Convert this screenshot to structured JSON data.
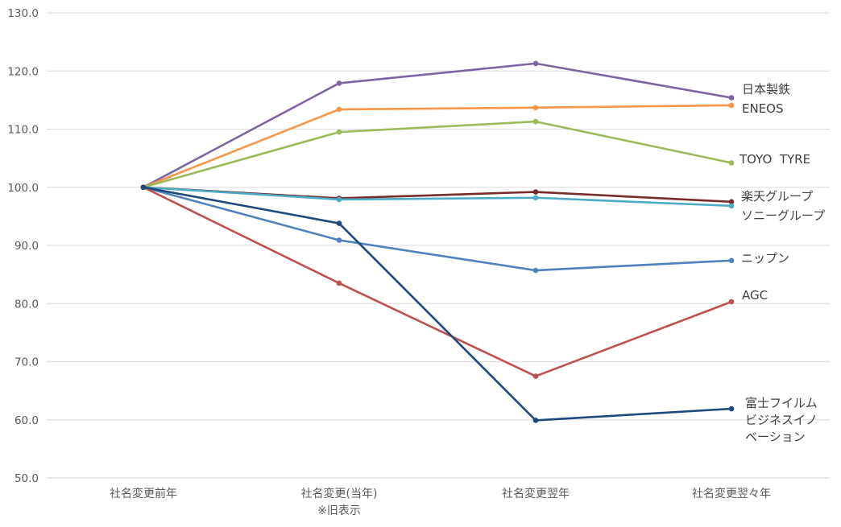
{
  "chart_data": {
    "type": "line",
    "title": "",
    "xlabel": "",
    "ylabel": "",
    "ylim": [
      50,
      130
    ],
    "grid": true,
    "y_ticks": [
      "130.0",
      "120.0",
      "110.0",
      "100.0",
      "90.0",
      "80.0",
      "70.0",
      "60.0",
      "50.0"
    ],
    "y_tick_values": [
      130,
      120,
      110,
      100,
      90,
      80,
      70,
      60,
      50
    ],
    "categories": [
      [
        "社名変更前年"
      ],
      [
        "社名変更(当年)",
        "※旧表示"
      ],
      [
        "社名変更翌年"
      ],
      [
        "社名変更翌々年"
      ]
    ],
    "legend": "inline-right",
    "series": [
      {
        "name": "日本製鉄",
        "label_lines": [
          "日本製鉄"
        ],
        "color": "#8064A2",
        "values": [
          100.0,
          117.9,
          121.3,
          115.4
        ]
      },
      {
        "name": "ENEOS",
        "label_lines": [
          "ENEOS"
        ],
        "color": "#F79646",
        "values": [
          100.0,
          113.4,
          113.7,
          114.1
        ]
      },
      {
        "name": "TOYO TYRE",
        "label_lines": [
          "TOYO  TYRE"
        ],
        "color": "#9BBB59",
        "values": [
          100.0,
          109.5,
          111.3,
          104.2
        ]
      },
      {
        "name": "楽天グループ",
        "label_lines": [
          "楽天グループ"
        ],
        "color": "#772C2A",
        "values": [
          100.0,
          98.1,
          99.2,
          97.5
        ]
      },
      {
        "name": "ソニーグループ",
        "label_lines": [
          "ソニーグループ"
        ],
        "color": "#4BACC6",
        "values": [
          100.0,
          97.9,
          98.2,
          96.8
        ]
      },
      {
        "name": "ニップン",
        "label_lines": [
          "ニップン"
        ],
        "color": "#4F81BD",
        "values": [
          100.0,
          90.9,
          85.7,
          87.4
        ]
      },
      {
        "name": "AGC",
        "label_lines": [
          "AGC"
        ],
        "color": "#C0504D",
        "values": [
          100.0,
          83.5,
          67.5,
          80.3
        ]
      },
      {
        "name": "富士フイルムビジネスイノベーション",
        "label_lines": [
          "富士フイルム",
          "ビジネスイノ",
          "ベーション"
        ],
        "color": "#1F497D",
        "values": [
          100.0,
          93.8,
          59.9,
          61.9
        ]
      }
    ]
  }
}
